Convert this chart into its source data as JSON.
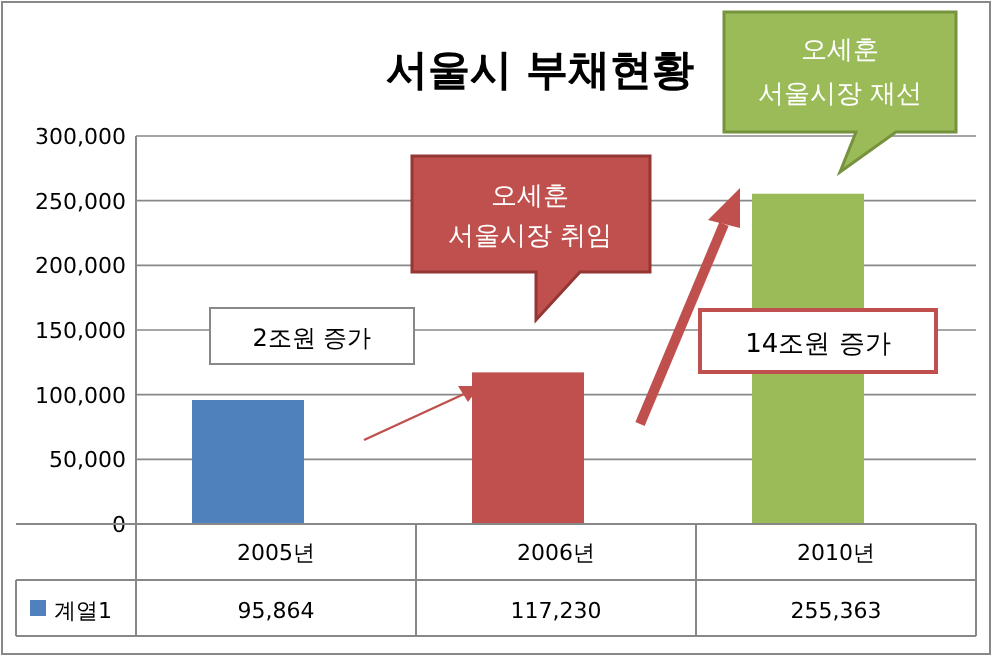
{
  "chart_data": {
    "type": "bar",
    "title": "서울시 부채현황",
    "categories": [
      "2005년",
      "2006년",
      "2010년"
    ],
    "series": [
      {
        "name": "계열1",
        "color": "#4f81bd",
        "colors": [
          "#4f81bd",
          "#c0504d",
          "#9bbb59"
        ],
        "values": [
          95864,
          117230,
          255363
        ],
        "value_labels": [
          "95,864",
          "117,230",
          "255,363"
        ]
      }
    ],
    "ylim": [
      0,
      300000
    ],
    "yticks": [
      {
        "value": 0,
        "label": "0"
      },
      {
        "value": 50000,
        "label": "50,000"
      },
      {
        "value": 100000,
        "label": "100,000"
      },
      {
        "value": 150000,
        "label": "150,000"
      },
      {
        "value": 200000,
        "label": "200,000"
      },
      {
        "value": 250000,
        "label": "250,000"
      },
      {
        "value": 300000,
        "label": "300,000"
      }
    ],
    "grid": "y",
    "legend": "bottom",
    "annotations": [
      "2조원 증가",
      "오세훈\n서울시장 취임",
      "14조원 증가",
      "오세훈\n서울시장 재선"
    ]
  }
}
